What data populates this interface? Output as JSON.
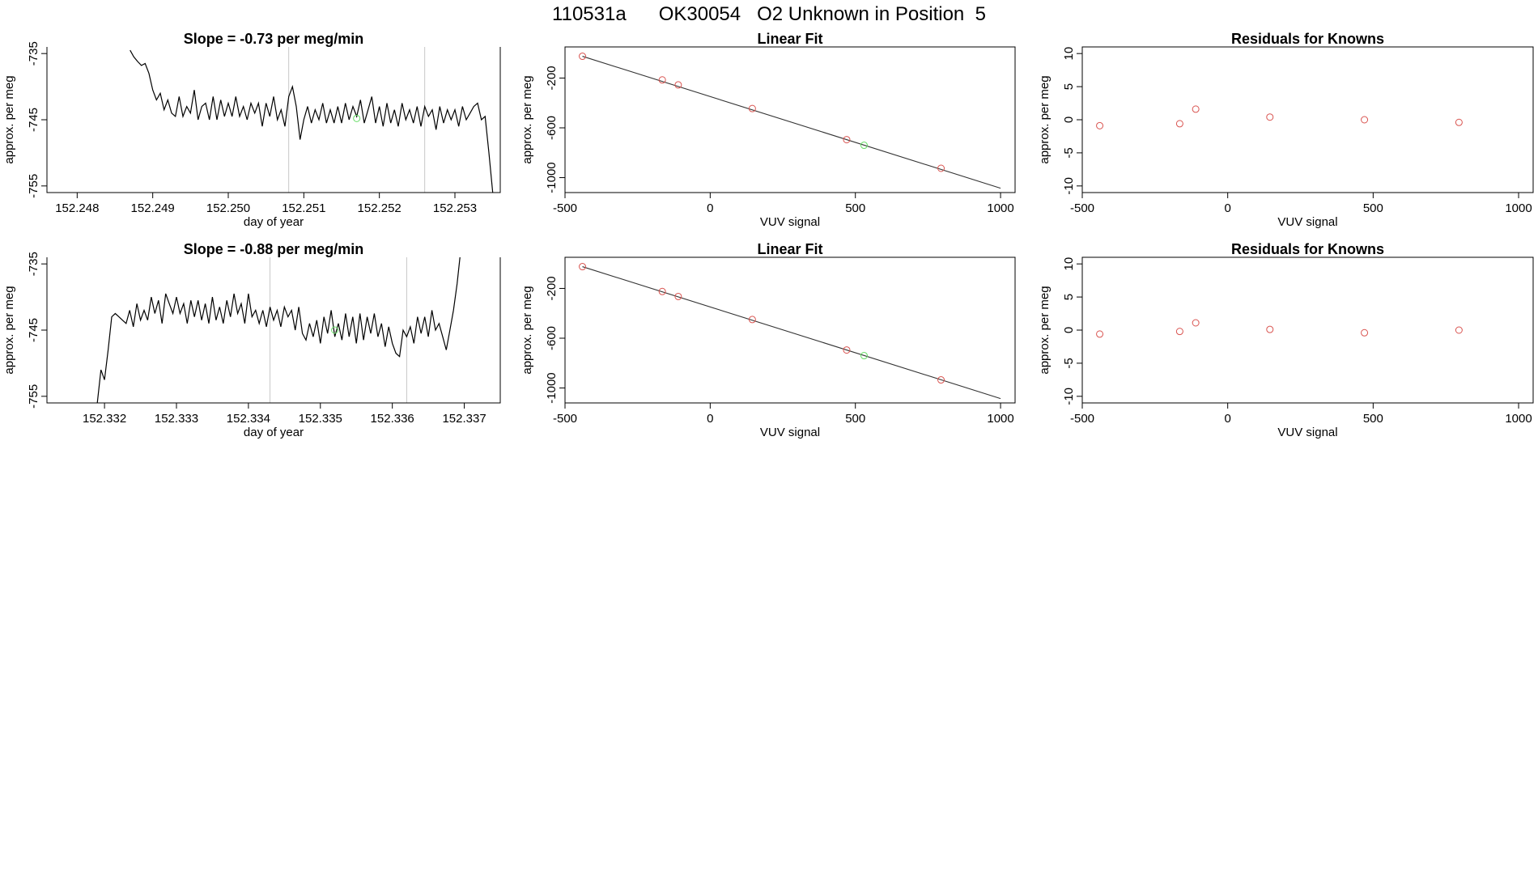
{
  "page": {
    "title": "110531a      OK30054   O2 Unknown in Position  5"
  },
  "chart_data": [
    {
      "id": "ts1",
      "type": "line",
      "title": "Slope =  -0.73  per meg/min",
      "xlabel": "day of year",
      "ylabel": "approx. per meg",
      "xlim": [
        152.2476,
        152.2536
      ],
      "ylim": [
        -756,
        -734
      ],
      "xticks": [
        152.248,
        152.249,
        152.25,
        152.251,
        152.252,
        152.253
      ],
      "xtick_labels": [
        "152.248",
        "152.249",
        "152.250",
        "152.251",
        "152.252",
        "152.253"
      ],
      "yticks": [
        -735,
        -745,
        -755
      ],
      "ytick_labels": [
        "-735",
        "-745",
        "-755"
      ],
      "vlines": [
        152.2508,
        152.2526
      ],
      "unknown_point": {
        "x": 152.2517,
        "y": -744.8
      },
      "series": [
        {
          "color": "#000000",
          "x": [
            152.2487,
            152.24875,
            152.2488,
            152.24885,
            152.2489,
            152.24895,
            152.249,
            152.24905,
            152.2491,
            152.24915,
            152.2492,
            152.24925,
            152.2493,
            152.24935,
            152.2494,
            152.24945,
            152.2495,
            152.24955,
            152.2496,
            152.24965,
            152.2497,
            152.24975,
            152.2498,
            152.24985,
            152.2499,
            152.24995,
            152.25,
            152.25005,
            152.2501,
            152.25015,
            152.2502,
            152.25025,
            152.2503,
            152.25035,
            152.2504,
            152.25045,
            152.2505,
            152.25055,
            152.2506,
            152.25065,
            152.2507,
            152.25075,
            152.2508,
            152.25085,
            152.2509,
            152.25095,
            152.251,
            152.25105,
            152.2511,
            152.25115,
            152.2512,
            152.25125,
            152.2513,
            152.25135,
            152.2514,
            152.25145,
            152.2515,
            152.25155,
            152.2516,
            152.25165,
            152.2517,
            152.25175,
            152.2518,
            152.25185,
            152.2519,
            152.25195,
            152.252,
            152.25205,
            152.2521,
            152.25215,
            152.2522,
            152.25225,
            152.2523,
            152.25235,
            152.2524,
            152.25245,
            152.2525,
            152.25255,
            152.2526,
            152.25265,
            152.2527,
            152.25275,
            152.2528,
            152.25285,
            152.2529,
            152.25295,
            152.253,
            152.25305,
            152.2531,
            152.25315,
            152.2532,
            152.25325,
            152.2533,
            152.25335,
            152.2534,
            152.25345,
            152.2535
          ],
          "y": [
            -734.5,
            -735.5,
            -736.2,
            -736.8,
            -736.5,
            -738,
            -740.5,
            -742,
            -741,
            -743.5,
            -742,
            -744,
            -744.5,
            -741.5,
            -744.5,
            -743,
            -744,
            -740.5,
            -745,
            -743,
            -742.5,
            -745,
            -741.5,
            -745,
            -742,
            -744.5,
            -742.5,
            -744.5,
            -741.5,
            -744.5,
            -743,
            -745,
            -742.5,
            -744,
            -742.5,
            -746,
            -742.5,
            -744.5,
            -741.5,
            -745,
            -743.5,
            -746,
            -741.5,
            -740,
            -743,
            -748,
            -745,
            -743,
            -745.5,
            -743.5,
            -745,
            -742.5,
            -745.5,
            -743.5,
            -745.5,
            -743,
            -745.5,
            -742.5,
            -745,
            -743,
            -744.5,
            -742,
            -745.5,
            -743.5,
            -741.5,
            -745.5,
            -743,
            -746,
            -742.5,
            -745.5,
            -743.5,
            -746,
            -742.5,
            -745,
            -743.5,
            -745.5,
            -743,
            -746,
            -743,
            -744.5,
            -743.5,
            -746.5,
            -743,
            -745.5,
            -743.5,
            -745,
            -743.5,
            -746,
            -743,
            -745,
            -744,
            -743,
            -742.5,
            -745,
            -744.5,
            -750,
            -756
          ]
        }
      ]
    },
    {
      "id": "ts2",
      "type": "line",
      "title": "Slope =  -0.88  per meg/min",
      "xlabel": "day of year",
      "ylabel": "approx. per meg",
      "xlim": [
        152.3312,
        152.3375
      ],
      "ylim": [
        -756,
        -734
      ],
      "xticks": [
        152.332,
        152.333,
        152.334,
        152.335,
        152.336,
        152.337
      ],
      "xtick_labels": [
        "152.332",
        "152.333",
        "152.334",
        "152.335",
        "152.336",
        "152.337"
      ],
      "yticks": [
        -735,
        -745,
        -755
      ],
      "ytick_labels": [
        "-735",
        "-745",
        "-755"
      ],
      "vlines": [
        152.3343,
        152.3362
      ],
      "unknown_point": {
        "x": 152.3352,
        "y": -745
      },
      "series": [
        {
          "color": "#000000",
          "x": [
            152.3319,
            152.33195,
            152.332,
            152.33205,
            152.3321,
            152.33215,
            152.3322,
            152.33225,
            152.3323,
            152.33235,
            152.3324,
            152.33245,
            152.3325,
            152.33255,
            152.3326,
            152.33265,
            152.3327,
            152.33275,
            152.3328,
            152.33285,
            152.3329,
            152.33295,
            152.333,
            152.33305,
            152.3331,
            152.33315,
            152.3332,
            152.33325,
            152.3333,
            152.33335,
            152.3334,
            152.33345,
            152.3335,
            152.33355,
            152.3336,
            152.33365,
            152.3337,
            152.33375,
            152.3338,
            152.33385,
            152.3339,
            152.33395,
            152.334,
            152.33405,
            152.3341,
            152.33415,
            152.3342,
            152.33425,
            152.3343,
            152.33435,
            152.3344,
            152.33445,
            152.3345,
            152.33455,
            152.3346,
            152.33465,
            152.3347,
            152.33475,
            152.3348,
            152.33485,
            152.3349,
            152.33495,
            152.335,
            152.33505,
            152.3351,
            152.33515,
            152.3352,
            152.33525,
            152.3353,
            152.33535,
            152.3354,
            152.33545,
            152.3355,
            152.33555,
            152.3356,
            152.33565,
            152.3357,
            152.33575,
            152.3358,
            152.33585,
            152.3359,
            152.33595,
            152.336,
            152.33605,
            152.3361,
            152.33615,
            152.3362,
            152.33625,
            152.3363,
            152.33635,
            152.3364,
            152.33645,
            152.3365,
            152.33655,
            152.3366,
            152.33665,
            152.3367,
            152.33675,
            152.3368,
            152.33685,
            152.3369,
            152.33695
          ],
          "y": [
            -756,
            -751,
            -752.5,
            -748,
            -743,
            -742.5,
            -743,
            -743.5,
            -744,
            -742,
            -744.5,
            -741,
            -743.5,
            -742,
            -743.5,
            -740,
            -742.5,
            -740.5,
            -744,
            -739.5,
            -741,
            -742.5,
            -740,
            -742.5,
            -741,
            -744,
            -740.5,
            -743,
            -740.5,
            -743.5,
            -741,
            -744,
            -740,
            -743.5,
            -741.5,
            -744,
            -740.5,
            -743,
            -739.5,
            -742.5,
            -741,
            -744,
            -739.5,
            -743,
            -742,
            -744,
            -742,
            -744.5,
            -741.5,
            -743.5,
            -742,
            -744.5,
            -741.5,
            -743,
            -742,
            -745,
            -741.5,
            -745.5,
            -746.5,
            -744,
            -746,
            -743.5,
            -747,
            -743,
            -745.5,
            -742,
            -746,
            -744,
            -746.5,
            -742.5,
            -746,
            -743,
            -747,
            -742.5,
            -746.5,
            -743,
            -745.5,
            -742.5,
            -746,
            -744,
            -747.5,
            -744.5,
            -747,
            -748.5,
            -749,
            -745,
            -746,
            -744.5,
            -747,
            -743,
            -745.5,
            -743,
            -746,
            -742,
            -745,
            -744,
            -746,
            -748,
            -745,
            -742,
            -738,
            -733
          ]
        }
      ]
    },
    {
      "id": "fit1",
      "type": "scatter",
      "title": "Linear Fit",
      "xlabel": "VUV signal",
      "ylabel": "approx. per meg",
      "xlim": [
        -500,
        1050
      ],
      "ylim": [
        -1120,
        50
      ],
      "xticks": [
        -500,
        0,
        500,
        1000
      ],
      "xtick_labels": [
        "-500",
        "0",
        "500",
        "1000"
      ],
      "yticks": [
        -200,
        -600,
        -1000
      ],
      "ytick_labels": [
        "-200",
        "-600",
        "-1000"
      ],
      "fit_line": {
        "x": [
          -440,
          1000
        ],
        "y": [
          -25,
          -1085
        ]
      },
      "knowns": {
        "color": "#d9534f",
        "x": [
          -440,
          -165,
          -110,
          145,
          470,
          795
        ],
        "y": [
          -25,
          -215,
          -255,
          -445,
          -695,
          -925
        ]
      },
      "unknown": {
        "color": "#66dd66",
        "x": [
          530
        ],
        "y": [
          -740
        ]
      }
    },
    {
      "id": "res1",
      "type": "scatter",
      "title": "Residuals for Knowns",
      "xlabel": "VUV signal",
      "ylabel": "approx. per meg",
      "xlim": [
        -500,
        1050
      ],
      "ylim": [
        -11,
        11
      ],
      "xticks": [
        -500,
        0,
        500,
        1000
      ],
      "xtick_labels": [
        "-500",
        "0",
        "500",
        "1000"
      ],
      "yticks": [
        10,
        5,
        0,
        -5,
        -10
      ],
      "ytick_labels": [
        "10",
        "5",
        "0",
        "-5",
        "-10"
      ],
      "knowns": {
        "color": "#d9534f",
        "x": [
          -440,
          -165,
          -110,
          145,
          470,
          795
        ],
        "y": [
          -0.9,
          -0.6,
          1.6,
          0.4,
          0.0,
          -0.4
        ]
      }
    },
    {
      "id": "fit2",
      "type": "scatter",
      "title": "Linear Fit",
      "xlabel": "VUV signal",
      "ylabel": "approx. per meg",
      "xlim": [
        -500,
        1050
      ],
      "ylim": [
        -1120,
        50
      ],
      "xticks": [
        -500,
        0,
        500,
        1000
      ],
      "xtick_labels": [
        "-500",
        "0",
        "500",
        "1000"
      ],
      "yticks": [
        -200,
        -600,
        -1000
      ],
      "ytick_labels": [
        "-200",
        "-600",
        "-1000"
      ],
      "fit_line": {
        "x": [
          -440,
          1000
        ],
        "y": [
          -25,
          -1085
        ]
      },
      "knowns": {
        "color": "#d9534f",
        "x": [
          -440,
          -165,
          -110,
          145,
          470,
          795
        ],
        "y": [
          -25,
          -225,
          -265,
          -450,
          -695,
          -935
        ]
      },
      "unknown": {
        "color": "#66dd66",
        "x": [
          530
        ],
        "y": [
          -740
        ]
      }
    },
    {
      "id": "res2",
      "type": "scatter",
      "title": "Residuals for Knowns",
      "xlabel": "VUV signal",
      "ylabel": "approx. per meg",
      "xlim": [
        -500,
        1050
      ],
      "ylim": [
        -11,
        11
      ],
      "xticks": [
        -500,
        0,
        500,
        1000
      ],
      "xtick_labels": [
        "-500",
        "0",
        "500",
        "1000"
      ],
      "yticks": [
        10,
        5,
        0,
        -5,
        -10
      ],
      "ytick_labels": [
        "10",
        "5",
        "0",
        "-5",
        "-10"
      ],
      "knowns": {
        "color": "#d9534f",
        "x": [
          -440,
          -165,
          -110,
          145,
          470,
          795
        ],
        "y": [
          -0.6,
          -0.2,
          1.1,
          0.1,
          -0.4,
          0.0
        ]
      }
    }
  ]
}
